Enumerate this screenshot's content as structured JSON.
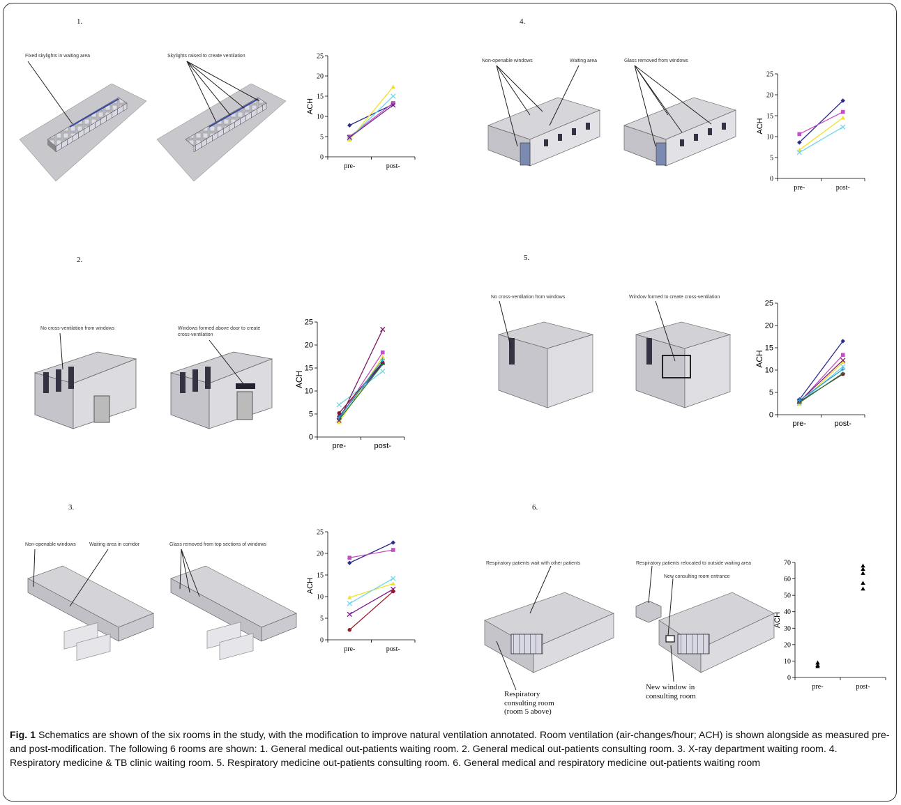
{
  "panels": [
    {
      "num": "1.",
      "annotations": [
        "Fixed skylights in waiting area",
        "Skylights raised to create ventilation"
      ]
    },
    {
      "num": "2.",
      "annotations": [
        "No cross-ventilation from windows",
        "Windows formed above door to create",
        "cross-ventilation"
      ]
    },
    {
      "num": "3.",
      "annotations": [
        "Non-openable windows",
        "Waiting area in corridor",
        "Glass removed from top sections of windows"
      ]
    },
    {
      "num": "4.",
      "annotations": [
        "Non-openable windows",
        "Waiting area",
        "Glass removed from windows"
      ]
    },
    {
      "num": "5.",
      "annotations": [
        "No cross-ventilation from windows",
        "Window formed to create cross-ventilation"
      ]
    },
    {
      "num": "6.",
      "annotations": [
        "Respiratory patients wait with other patients",
        "Respiratory patients relocated to outside waiting area",
        "New consulting room entrance"
      ],
      "serif_labels": [
        "Respiratory",
        "consulting room",
        "(room 5 above)",
        "New window in",
        "consulting room"
      ]
    }
  ],
  "chart_data": [
    {
      "type": "line",
      "panel": "1.",
      "categories": [
        "pre-",
        "post-"
      ],
      "ylabel": "ACH",
      "ylim": [
        0,
        25
      ],
      "yticks": [
        0,
        5,
        10,
        15,
        20,
        25
      ],
      "series": [
        {
          "color": "#2b2b8c",
          "marker": "diamond",
          "values": [
            7.8,
            13.0
          ]
        },
        {
          "color": "#c44ec4",
          "marker": "square",
          "values": [
            5.0,
            13.3
          ]
        },
        {
          "color": "#f2e02a",
          "marker": "triangle",
          "values": [
            4.2,
            17.3
          ]
        },
        {
          "color": "#6fd6e8",
          "marker": "x",
          "values": [
            4.6,
            15.0
          ]
        },
        {
          "color": "#6a2a8a",
          "marker": "x",
          "values": [
            4.8,
            12.8
          ]
        }
      ]
    },
    {
      "type": "line",
      "panel": "2.",
      "categories": [
        "pre-",
        "post-"
      ],
      "ylabel": "ACH",
      "ylim": [
        0,
        25
      ],
      "yticks": [
        0,
        5,
        10,
        15,
        20,
        25
      ],
      "series": [
        {
          "color": "#2b2b8c",
          "marker": "diamond",
          "values": [
            4.5,
            16.0
          ]
        },
        {
          "color": "#c44ec4",
          "marker": "square",
          "values": [
            4.0,
            18.4
          ]
        },
        {
          "color": "#f2e02a",
          "marker": "triangle",
          "values": [
            3.2,
            17.4
          ]
        },
        {
          "color": "#6fd6e8",
          "marker": "x",
          "values": [
            7.0,
            14.3
          ]
        },
        {
          "color": "#7a1a6a",
          "marker": "x",
          "values": [
            3.6,
            23.4
          ]
        },
        {
          "color": "#7a1a2a",
          "marker": "circle",
          "values": [
            5.2,
            16.2
          ]
        },
        {
          "color": "#2a9ad0",
          "marker": "plus",
          "values": [
            4.2,
            16.8
          ]
        },
        {
          "color": "#1f7a3a",
          "marker": "line",
          "values": [
            3.8,
            15.8
          ]
        }
      ]
    },
    {
      "type": "line",
      "panel": "3.",
      "categories": [
        "pre-",
        "post-"
      ],
      "ylabel": "ACH",
      "ylim": [
        0,
        25
      ],
      "yticks": [
        0,
        5,
        10,
        15,
        20,
        25
      ],
      "series": [
        {
          "color": "#2b2b8c",
          "marker": "diamond",
          "values": [
            17.8,
            22.5
          ]
        },
        {
          "color": "#c44ec4",
          "marker": "square",
          "values": [
            19.0,
            20.8
          ]
        },
        {
          "color": "#f2e02a",
          "marker": "triangle",
          "values": [
            9.8,
            13.0
          ]
        },
        {
          "color": "#6fd6e8",
          "marker": "x",
          "values": [
            8.4,
            14.2
          ]
        },
        {
          "color": "#7a1a8a",
          "marker": "x",
          "values": [
            5.9,
            11.7
          ]
        },
        {
          "color": "#9a1a2a",
          "marker": "circle",
          "values": [
            2.3,
            11.2
          ]
        }
      ]
    },
    {
      "type": "line",
      "panel": "4.",
      "categories": [
        "pre-",
        "post-"
      ],
      "ylabel": "ACH",
      "ylim": [
        0,
        25
      ],
      "yticks": [
        0,
        5,
        10,
        15,
        20,
        25
      ],
      "series": [
        {
          "color": "#2b2b8c",
          "marker": "diamond",
          "values": [
            8.6,
            18.6
          ]
        },
        {
          "color": "#c44ec4",
          "marker": "square",
          "values": [
            10.6,
            15.9
          ]
        },
        {
          "color": "#f2e02a",
          "marker": "triangle",
          "values": [
            6.8,
            14.5
          ]
        },
        {
          "color": "#6fd6e8",
          "marker": "x",
          "values": [
            6.2,
            12.3
          ]
        }
      ]
    },
    {
      "type": "line",
      "panel": "5.",
      "categories": [
        "pre-",
        "post-"
      ],
      "ylabel": "ACH",
      "ylim": [
        0,
        25
      ],
      "yticks": [
        0,
        5,
        10,
        15,
        20,
        25
      ],
      "series": [
        {
          "color": "#2b2b8c",
          "marker": "diamond",
          "values": [
            3.4,
            16.5
          ]
        },
        {
          "color": "#c44ec4",
          "marker": "square",
          "values": [
            2.8,
            13.4
          ]
        },
        {
          "color": "#f2e02a",
          "marker": "triangle",
          "values": [
            2.4,
            11.8
          ]
        },
        {
          "color": "#6fd6e8",
          "marker": "x",
          "values": [
            2.6,
            10.8
          ]
        },
        {
          "color": "#7a1a6a",
          "marker": "x",
          "values": [
            3.0,
            12.2
          ]
        },
        {
          "color": "#7a1a2a",
          "marker": "circle",
          "values": [
            2.9,
            9.1
          ]
        },
        {
          "color": "#2a9ad0",
          "marker": "plus",
          "values": [
            3.2,
            10.2
          ]
        },
        {
          "color": "#1f7a3a",
          "marker": "line",
          "values": [
            2.7,
            9.3
          ]
        }
      ]
    },
    {
      "type": "scatter",
      "panel": "6.",
      "categories": [
        "pre-",
        "post-"
      ],
      "ylabel": "ACH",
      "ylim": [
        0,
        70
      ],
      "yticks": [
        0,
        10,
        20,
        30,
        40,
        50,
        60,
        70
      ],
      "series": [
        {
          "color": "#000000",
          "marker": "triangle",
          "points": [
            [
              "pre-",
              9.0
            ],
            [
              "pre-",
              7.5
            ],
            [
              "pre-",
              6.8
            ],
            [
              "post-",
              68.0
            ],
            [
              "post-",
              66.0
            ],
            [
              "post-",
              63.5
            ],
            [
              "post-",
              57.5
            ],
            [
              "post-",
              54.0
            ]
          ]
        }
      ]
    }
  ],
  "caption": {
    "label": "Fig. 1",
    "text": " Schematics are shown of the six rooms in the study, with the modification to improve natural ventilation annotated. Room ventilation (air-changes/hour; ACH) is shown alongside as measured pre- and post-modification. The following 6 rooms are shown: 1. General medical out-patients waiting room. 2. General medical out-patients consulting room. 3. X-ray department waiting room. 4. Respiratory medicine & TB clinic waiting room. 5. Respiratory medicine out-patients consulting room. 6. General medical and respiratory medicine out-patients waiting room"
  }
}
